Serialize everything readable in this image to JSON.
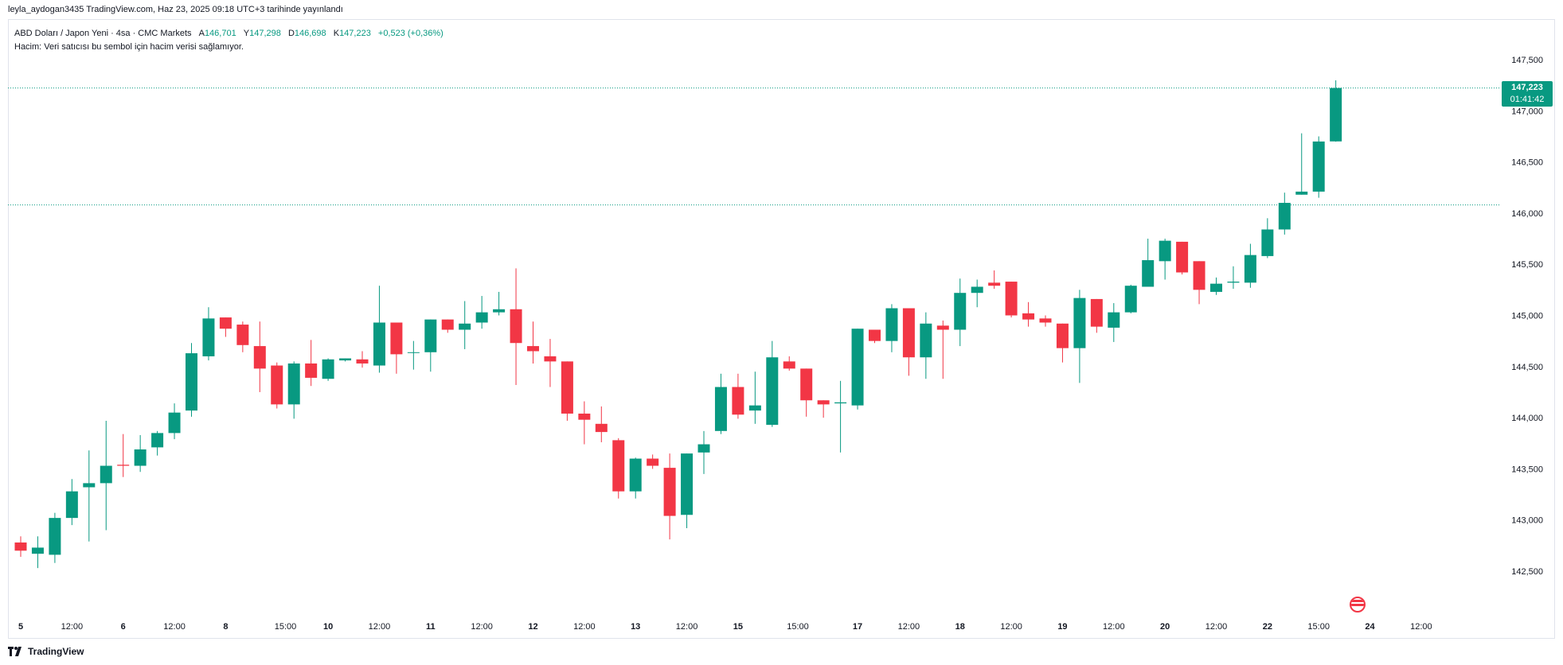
{
  "header": {
    "published_line": "leyla_aydogan3435 TradingView.com, Haz 23, 2025 09:18 UTC+3 tarihinde yayınlandı"
  },
  "legend": {
    "symbol": "ABD Doları / Japon Yeni · 4sa · CMC Markets",
    "open_label": "A",
    "open": "146,701",
    "high_label": "Y",
    "high": "147,298",
    "low_label": "D",
    "low": "146,698",
    "close_label": "K",
    "close": "147,223",
    "change": "+0,523 (+0,36%)",
    "volume_note": "Hacim: Veri satıcısı bu sembol için hacim verisi sağlamıyor."
  },
  "price_tag": {
    "price": "147,223",
    "countdown": "01:41:42"
  },
  "footer": {
    "brand": "TradingView"
  },
  "colors": {
    "up": "#089981",
    "down": "#f23645",
    "grid_line": "#089981",
    "axis_text": "#131722"
  },
  "chart_data": {
    "type": "candlestick",
    "symbol": "USDJPY",
    "timeframe": "4sa",
    "y_ticks": [
      "142,500",
      "143,000",
      "143,500",
      "144,000",
      "144,500",
      "145,000",
      "145,500",
      "146,000",
      "146,500",
      "147,000",
      "147,500"
    ],
    "y_tick_values": [
      142.5,
      143.0,
      143.5,
      144.0,
      144.5,
      145.0,
      145.5,
      146.0,
      146.5,
      147.0,
      147.5
    ],
    "ylim": [
      142.0,
      147.75
    ],
    "x_tick_labels": [
      {
        "label": "5",
        "bar": 0,
        "bold": true
      },
      {
        "label": "12:00",
        "bar": 3,
        "bold": false
      },
      {
        "label": "6",
        "bar": 6,
        "bold": true
      },
      {
        "label": "12:00",
        "bar": 9,
        "bold": false
      },
      {
        "label": "8",
        "bar": 12,
        "bold": true
      },
      {
        "label": "15:00",
        "bar": 15.5,
        "bold": false
      },
      {
        "label": "10",
        "bar": 18,
        "bold": true
      },
      {
        "label": "12:00",
        "bar": 21,
        "bold": false
      },
      {
        "label": "11",
        "bar": 24,
        "bold": true
      },
      {
        "label": "12:00",
        "bar": 27,
        "bold": false
      },
      {
        "label": "12",
        "bar": 30,
        "bold": true
      },
      {
        "label": "12:00",
        "bar": 33,
        "bold": false
      },
      {
        "label": "13",
        "bar": 36,
        "bold": true
      },
      {
        "label": "12:00",
        "bar": 39,
        "bold": false
      },
      {
        "label": "15",
        "bar": 42,
        "bold": true
      },
      {
        "label": "15:00",
        "bar": 45.5,
        "bold": false
      },
      {
        "label": "17",
        "bar": 49,
        "bold": true
      },
      {
        "label": "12:00",
        "bar": 52,
        "bold": false
      },
      {
        "label": "18",
        "bar": 55,
        "bold": true
      },
      {
        "label": "12:00",
        "bar": 58,
        "bold": false
      },
      {
        "label": "19",
        "bar": 61,
        "bold": true
      },
      {
        "label": "12:00",
        "bar": 64,
        "bold": false
      },
      {
        "label": "20",
        "bar": 67,
        "bold": true
      },
      {
        "label": "12:00",
        "bar": 70,
        "bold": false
      },
      {
        "label": "22",
        "bar": 73,
        "bold": true
      },
      {
        "label": "15:00",
        "bar": 76,
        "bold": false
      },
      {
        "label": "24",
        "bar": 79,
        "bold": true
      },
      {
        "label": "12:00",
        "bar": 82,
        "bold": false
      }
    ],
    "horizontal_lines": [
      147.223,
      146.08
    ],
    "candles": [
      [
        142.78,
        142.84,
        142.64,
        142.7
      ],
      [
        142.67,
        142.84,
        142.53,
        142.73
      ],
      [
        142.66,
        143.07,
        142.58,
        143.02
      ],
      [
        143.02,
        143.4,
        142.95,
        143.28
      ],
      [
        143.32,
        143.68,
        142.79,
        143.36
      ],
      [
        143.36,
        143.97,
        142.9,
        143.53
      ],
      [
        143.54,
        143.84,
        143.42,
        143.53
      ],
      [
        143.53,
        143.83,
        143.47,
        143.69
      ],
      [
        143.71,
        143.87,
        143.63,
        143.85
      ],
      [
        143.85,
        144.14,
        143.79,
        144.05
      ],
      [
        144.07,
        144.73,
        144.01,
        144.63
      ],
      [
        144.6,
        145.08,
        144.56,
        144.97
      ],
      [
        144.98,
        144.98,
        144.79,
        144.87
      ],
      [
        144.91,
        144.94,
        144.64,
        144.71
      ],
      [
        144.7,
        144.94,
        144.25,
        144.48
      ],
      [
        144.51,
        144.54,
        144.09,
        144.13
      ],
      [
        144.13,
        144.55,
        143.99,
        144.53
      ],
      [
        144.53,
        144.76,
        144.31,
        144.39
      ],
      [
        144.38,
        144.58,
        144.36,
        144.57
      ],
      [
        144.56,
        144.58,
        144.55,
        144.58
      ],
      [
        144.57,
        144.65,
        144.49,
        144.53
      ],
      [
        144.51,
        145.29,
        144.44,
        144.93
      ],
      [
        144.93,
        144.93,
        144.43,
        144.62
      ],
      [
        144.64,
        144.75,
        144.47,
        144.64
      ],
      [
        144.64,
        144.96,
        144.45,
        144.96
      ],
      [
        144.96,
        144.96,
        144.83,
        144.86
      ],
      [
        144.86,
        145.14,
        144.67,
        144.92
      ],
      [
        144.93,
        145.19,
        144.87,
        145.03
      ],
      [
        145.03,
        145.23,
        145.0,
        145.06
      ],
      [
        145.06,
        145.46,
        144.32,
        144.73
      ],
      [
        144.7,
        144.94,
        144.53,
        144.65
      ],
      [
        144.6,
        144.77,
        144.3,
        144.55
      ],
      [
        144.55,
        144.55,
        143.97,
        144.04
      ],
      [
        144.04,
        144.16,
        143.74,
        143.98
      ],
      [
        143.94,
        144.11,
        143.76,
        143.86
      ],
      [
        143.78,
        143.8,
        143.21,
        143.28
      ],
      [
        143.28,
        143.61,
        143.21,
        143.6
      ],
      [
        143.6,
        143.64,
        143.5,
        143.53
      ],
      [
        143.51,
        143.65,
        142.81,
        143.04
      ],
      [
        143.05,
        143.65,
        142.92,
        143.65
      ],
      [
        143.66,
        143.87,
        143.45,
        143.74
      ],
      [
        143.87,
        144.43,
        143.84,
        144.3
      ],
      [
        144.3,
        144.43,
        143.99,
        144.03
      ],
      [
        144.07,
        144.45,
        143.94,
        144.12
      ],
      [
        143.93,
        144.75,
        143.91,
        144.59
      ],
      [
        144.55,
        144.6,
        144.46,
        144.48
      ],
      [
        144.48,
        144.48,
        144.01,
        144.17
      ],
      [
        144.17,
        144.17,
        144.0,
        144.13
      ],
      [
        144.14,
        144.36,
        143.66,
        144.15
      ],
      [
        144.12,
        144.87,
        144.08,
        144.87
      ],
      [
        144.86,
        144.86,
        144.73,
        144.75
      ],
      [
        144.75,
        145.11,
        144.64,
        145.07
      ],
      [
        145.07,
        145.07,
        144.41,
        144.59
      ],
      [
        144.59,
        145.03,
        144.38,
        144.92
      ],
      [
        144.9,
        144.95,
        144.38,
        144.86
      ],
      [
        144.86,
        145.36,
        144.7,
        145.22
      ],
      [
        145.22,
        145.35,
        145.08,
        145.28
      ],
      [
        145.32,
        145.44,
        145.26,
        145.29
      ],
      [
        145.33,
        145.33,
        144.98,
        145.0
      ],
      [
        145.02,
        145.13,
        144.89,
        144.96
      ],
      [
        144.97,
        145.0,
        144.89,
        144.93
      ],
      [
        144.92,
        144.92,
        144.54,
        144.68
      ],
      [
        144.68,
        145.25,
        144.34,
        145.17
      ],
      [
        145.16,
        145.16,
        144.83,
        144.89
      ],
      [
        144.88,
        145.12,
        144.74,
        145.03
      ],
      [
        145.03,
        145.3,
        145.02,
        145.29
      ],
      [
        145.28,
        145.75,
        145.28,
        145.54
      ],
      [
        145.53,
        145.75,
        145.35,
        145.73
      ],
      [
        145.72,
        145.72,
        145.4,
        145.42
      ],
      [
        145.53,
        145.53,
        145.11,
        145.25
      ],
      [
        145.23,
        145.37,
        145.2,
        145.31
      ],
      [
        145.32,
        145.48,
        145.26,
        145.33
      ],
      [
        145.32,
        145.7,
        145.27,
        145.59
      ],
      [
        145.58,
        145.95,
        145.56,
        145.84
      ],
      [
        145.84,
        146.2,
        145.79,
        146.1
      ],
      [
        146.18,
        146.78,
        146.18,
        146.21
      ],
      [
        146.21,
        146.75,
        146.15,
        146.7
      ],
      [
        146.701,
        147.298,
        146.698,
        147.223
      ]
    ]
  }
}
